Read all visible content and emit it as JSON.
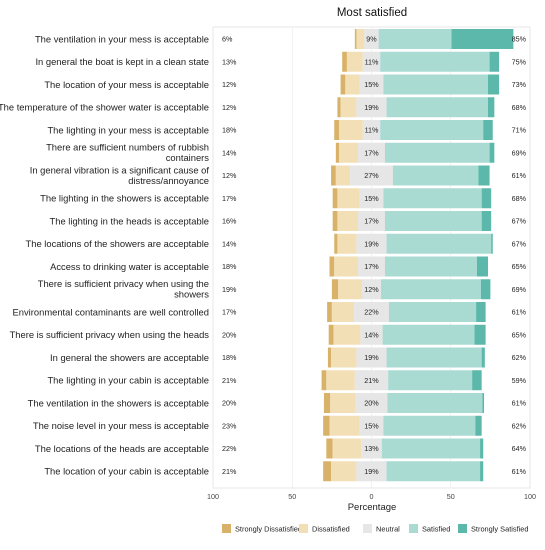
{
  "chart_data": {
    "type": "bar",
    "subtype": "diverging-stacked-likert",
    "title": "Most satisfied",
    "xlabel": "Percentage",
    "xlim": [
      -100,
      100
    ],
    "x_ticks": [
      -100,
      -50,
      0,
      50,
      100
    ],
    "x_tick_labels": [
      "100",
      "50",
      "0",
      "50",
      "100"
    ],
    "grid": true,
    "legend_position": "bottom",
    "levels": [
      "Strongly Dissatisfied",
      "Dissatisfied",
      "Neutral",
      "Satisfied",
      "Strongly Satisfied"
    ],
    "colors": [
      "#d9b26a",
      "#f2dfb5",
      "#e6e6e6",
      "#a9dbd3",
      "#5bb8ab"
    ],
    "categories": [
      "The ventilation in your mess is acceptable",
      "In general the boat is kept in a clean state",
      "The location of your mess is acceptable",
      "The temperature of the shower water is acceptable",
      "The lighting in your mess is acceptable",
      "There are sufficient numbers of rubbish containers",
      "In general vibration is a significant cause of distress/annoyance",
      "The lighting in the showers is acceptable",
      "The lighting in the heads is acceptable",
      "The locations of the showers are acceptable",
      "Access to drinking water is acceptable",
      "There is sufficient privacy when using the showers",
      "Environmental contaminants are well controlled",
      "There is sufficient privacy when using the heads",
      "In general the showers are acceptable",
      "The lighting in your cabin is acceptable",
      "The ventilation in the showers is acceptable",
      "The noise level in your mess is acceptable",
      "The locations of the heads are acceptable",
      "The location of your cabin is acceptable"
    ],
    "category_display": [
      [
        "The ventilation in your mess is acceptable"
      ],
      [
        "In general the boat is kept in a clean state"
      ],
      [
        "The location of your mess is acceptable"
      ],
      [
        "The temperature of the shower water is acceptable"
      ],
      [
        "The lighting in your mess is acceptable"
      ],
      [
        "There are sufficient numbers of rubbish",
        "containers"
      ],
      [
        "In general vibration is a significant cause of",
        "distress/annoyance"
      ],
      [
        "The lighting in the showers is acceptable"
      ],
      [
        "The lighting in the heads is acceptable"
      ],
      [
        "The locations of the showers are acceptable"
      ],
      [
        "Access to drinking water is acceptable"
      ],
      [
        "There is sufficient privacy when using the",
        "showers"
      ],
      [
        "Environmental contaminants are well controlled"
      ],
      [
        "There is sufficient privacy when using the heads"
      ],
      [
        "In general the showers are acceptable"
      ],
      [
        "The lighting in your cabin is acceptable"
      ],
      [
        "The ventilation in the showers is acceptable"
      ],
      [
        "The noise level in your mess is acceptable"
      ],
      [
        "The locations of the heads are acceptable"
      ],
      [
        "The location of your cabin is acceptable"
      ]
    ],
    "series": [
      {
        "name": "Strongly Dissatisfied",
        "values": [
          1,
          3,
          3,
          2,
          3,
          2,
          3,
          3,
          3,
          2,
          3,
          4,
          3,
          3,
          2,
          3,
          4,
          4,
          4,
          5
        ]
      },
      {
        "name": "Dissatisfied",
        "values": [
          5,
          10,
          9,
          10,
          15,
          12,
          9,
          14,
          13,
          12,
          15,
          15,
          14,
          17,
          16,
          18,
          16,
          19,
          18,
          16
        ]
      },
      {
        "name": "Neutral",
        "values": [
          9,
          11,
          15,
          19,
          11,
          17,
          27,
          15,
          17,
          19,
          17,
          12,
          22,
          14,
          19,
          21,
          20,
          15,
          13,
          19
        ]
      },
      {
        "name": "Satisfied",
        "values": [
          46,
          69,
          66,
          64,
          65,
          66,
          54,
          62,
          61,
          66,
          58,
          63,
          55,
          58,
          60,
          53,
          60,
          58,
          62,
          59
        ]
      },
      {
        "name": "Strongly Satisfied",
        "values": [
          39,
          6,
          7,
          4,
          6,
          3,
          7,
          6,
          6,
          1,
          7,
          6,
          6,
          7,
          2,
          6,
          1,
          4,
          2,
          2
        ]
      }
    ],
    "left_totals": [
      "6%",
      "13%",
      "12%",
      "12%",
      "18%",
      "14%",
      "12%",
      "17%",
      "16%",
      "14%",
      "18%",
      "19%",
      "17%",
      "20%",
      "18%",
      "21%",
      "20%",
      "23%",
      "22%",
      "21%"
    ],
    "neutral_labels": [
      "9%",
      "11%",
      "15%",
      "19%",
      "11%",
      "17%",
      "27%",
      "15%",
      "17%",
      "19%",
      "17%",
      "12%",
      "22%",
      "14%",
      "19%",
      "21%",
      "20%",
      "15%",
      "13%",
      "19%"
    ],
    "right_totals": [
      "85%",
      "75%",
      "73%",
      "68%",
      "71%",
      "69%",
      "61%",
      "68%",
      "67%",
      "67%",
      "65%",
      "69%",
      "61%",
      "65%",
      "62%",
      "59%",
      "61%",
      "62%",
      "64%",
      "61%"
    ]
  }
}
